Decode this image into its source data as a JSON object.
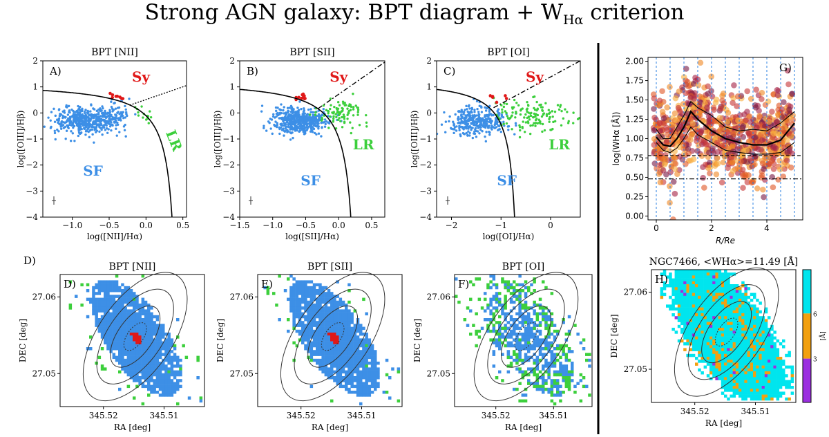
{
  "title": "Strong AGN galaxy: BPT diagram + W",
  "title_sub": "Hα",
  "title_rest": " criterion",
  "colors": {
    "sf": "#3d8fe6",
    "sy": "#e01818",
    "lr": "#3ccf3c",
    "cyan": "#00e5ee",
    "orange": "#f2a010",
    "purple": "#9b30e0"
  },
  "chart_data": [
    {
      "id": "A",
      "type": "scatter",
      "title": "BPT [NII]",
      "letter": "A)",
      "xlabel": "log([NII]/Hα)",
      "ylabel": "log([OIII]/Hβ)",
      "xlim": [
        -1.4,
        0.55
      ],
      "ylim": [
        -4,
        2
      ],
      "xticks": [
        "−1.0",
        "−0.5",
        "0.0",
        "0.5"
      ],
      "xtick_values": [
        -1.0,
        -0.5,
        0.0,
        0.5
      ],
      "yticks": [
        "−4",
        "−3",
        "−2",
        "−1",
        "0",
        "1",
        "2"
      ],
      "ytick_values": [
        -4,
        -3,
        -2,
        -1,
        0,
        1,
        2
      ],
      "labels": {
        "sy": "Sy",
        "lr": "LR",
        "sf": "SF"
      },
      "clusters": [
        {
          "class": "sf",
          "cx": -0.85,
          "cy": -0.3,
          "sx": 0.2,
          "sy": 0.25,
          "n": 420
        },
        {
          "class": "sf",
          "cx": -0.45,
          "cy": -0.1,
          "sx": 0.12,
          "sy": 0.25,
          "n": 110
        },
        {
          "class": "lr",
          "cx": -0.05,
          "cy": -0.05,
          "sx": 0.08,
          "sy": 0.2,
          "n": 14
        },
        {
          "class": "sy",
          "cx": -0.38,
          "cy": 0.65,
          "sx": 0.05,
          "sy": 0.08,
          "n": 8
        }
      ]
    },
    {
      "id": "B",
      "type": "scatter",
      "title": "BPT [SII]",
      "letter": "B)",
      "xlabel": "log([SII]/Hα)",
      "ylabel": "log([OIII]/Hβ)",
      "xlim": [
        -1.5,
        0.7
      ],
      "ylim": [
        -4,
        2
      ],
      "xticks": [
        "−1.5",
        "−1.0",
        "−0.5",
        "0.0",
        "0.5"
      ],
      "xtick_values": [
        -1.5,
        -1.0,
        -0.5,
        0.0,
        0.5
      ],
      "yticks": [
        "−4",
        "−3",
        "−2",
        "−1",
        "0",
        "1",
        "2"
      ],
      "ytick_values": [
        -4,
        -3,
        -2,
        -1,
        0,
        1,
        2
      ],
      "labels": {
        "sy": "Sy",
        "lr": "LR",
        "sf": "SF"
      },
      "clusters": [
        {
          "class": "sf",
          "cx": -0.6,
          "cy": -0.3,
          "sx": 0.2,
          "sy": 0.25,
          "n": 500
        },
        {
          "class": "lr",
          "cx": 0.05,
          "cy": -0.05,
          "sx": 0.18,
          "sy": 0.25,
          "n": 95
        },
        {
          "class": "sy",
          "cx": -0.55,
          "cy": 0.6,
          "sx": 0.05,
          "sy": 0.1,
          "n": 10
        }
      ]
    },
    {
      "id": "C",
      "type": "scatter",
      "title": "BPT [OI]",
      "letter": "C)",
      "xlabel": "log([OI]/Hα)",
      "ylabel": "log([OIII]/Hβ)",
      "xlim": [
        -2.3,
        0.6
      ],
      "ylim": [
        -4,
        2
      ],
      "xticks": [
        "−2",
        "−1",
        "0"
      ],
      "xtick_values": [
        -2,
        -1,
        0
      ],
      "yticks": [
        "−4",
        "−3",
        "−2",
        "−1",
        "0",
        "1",
        "2"
      ],
      "ytick_values": [
        -4,
        -3,
        -2,
        -1,
        0,
        1,
        2
      ],
      "labels": {
        "sy": "Sy",
        "lr": "LR",
        "sf": "SF"
      },
      "clusters": [
        {
          "class": "sf",
          "cx": -1.5,
          "cy": -0.3,
          "sx": 0.3,
          "sy": 0.25,
          "n": 360
        },
        {
          "class": "lr",
          "cx": -0.4,
          "cy": -0.1,
          "sx": 0.4,
          "sy": 0.3,
          "n": 140
        },
        {
          "class": "sy",
          "cx": -1.1,
          "cy": 0.55,
          "sx": 0.2,
          "sy": 0.1,
          "n": 6
        }
      ]
    },
    {
      "id": "G",
      "type": "scatter",
      "letter": "G)",
      "xlabel": "R/Re",
      "ylabel": "log(WHα [Å])",
      "xlim": [
        -0.3,
        5.3
      ],
      "ylim": [
        -0.05,
        2.05
      ],
      "xticks": [
        "0",
        "2",
        "4"
      ],
      "xtick_values": [
        0,
        2,
        4
      ],
      "yticks": [
        "0.00",
        "0.25",
        "0.50",
        "0.75",
        "1.00",
        "1.25",
        "1.50",
        "1.75",
        "2.00"
      ],
      "ytick_values": [
        0,
        0.25,
        0.5,
        0.75,
        1.0,
        1.25,
        1.5,
        1.75,
        2.0
      ],
      "hlines": [
        0.78,
        0.48
      ],
      "median": {
        "x": [
          0,
          0.25,
          0.5,
          0.75,
          1.0,
          1.25,
          1.5,
          2.0,
          2.5,
          3.0,
          3.5,
          4.0,
          4.5,
          5.0
        ],
        "y": [
          1.02,
          0.92,
          0.9,
          1.0,
          1.15,
          1.35,
          1.25,
          1.1,
          1.0,
          0.95,
          0.92,
          0.92,
          0.98,
          1.2
        ]
      },
      "upper": {
        "x": [
          0,
          0.25,
          0.5,
          0.75,
          1.0,
          1.25,
          1.5,
          2.0,
          2.5,
          3.0,
          3.5,
          4.0,
          4.5,
          5.0
        ],
        "y": [
          1.12,
          1.0,
          1.0,
          1.15,
          1.3,
          1.48,
          1.4,
          1.3,
          1.15,
          1.1,
          1.12,
          1.1,
          1.2,
          1.35
        ]
      },
      "lower": {
        "x": [
          0,
          0.25,
          0.5,
          0.75,
          1.0,
          1.25,
          1.5,
          2.0,
          2.5,
          3.0,
          3.5,
          4.0,
          4.5,
          5.0
        ],
        "y": [
          0.95,
          0.85,
          0.82,
          0.88,
          1.0,
          1.15,
          1.05,
          0.95,
          0.85,
          0.82,
          0.8,
          0.8,
          0.82,
          0.95
        ]
      },
      "vlines": [
        0.0,
        0.5,
        1.0,
        1.5,
        2.0,
        2.5,
        3.0,
        3.5,
        4.0,
        4.5,
        5.0
      ]
    }
  ],
  "maps": [
    {
      "id": "D",
      "title": "BPT [NII]",
      "letter": "D)",
      "scheme": "nii"
    },
    {
      "id": "E",
      "title": "BPT [SII]",
      "letter": "E)",
      "scheme": "sii"
    },
    {
      "id": "F",
      "title": "BPT [OI]",
      "letter": "F)",
      "scheme": "oi"
    }
  ],
  "map_axes": {
    "xlabel": "RA [deg]",
    "ylabel": "DEC [deg]",
    "xticks": [
      "345.52",
      "345.51"
    ],
    "yticks": [
      "27.06",
      "27.05"
    ]
  },
  "d_label": "D)",
  "h_panel": {
    "title": "NGC7466, <WHα>=11.49 [Å]",
    "letter": "H)",
    "cbar_ticks": [
      "6",
      "3"
    ],
    "cbar_label": "[Å]"
  }
}
